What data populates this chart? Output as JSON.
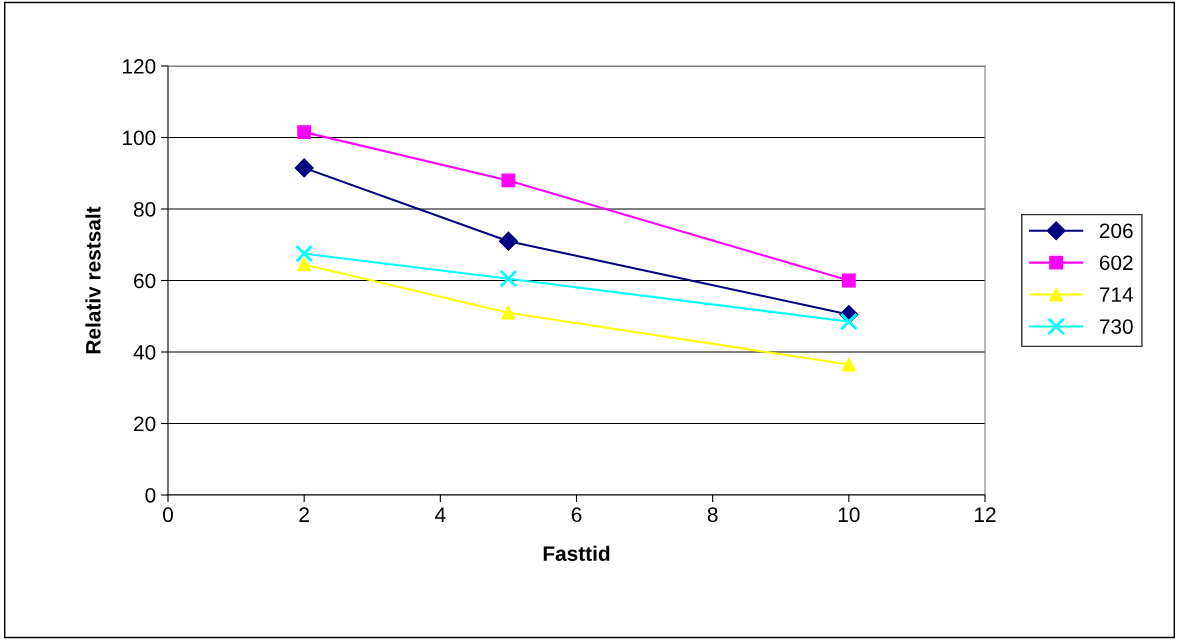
{
  "chart_data": {
    "type": "line",
    "xlabel": "Fasttid",
    "ylabel": "Relativ restsalt",
    "x": [
      2,
      5,
      10
    ],
    "series": [
      {
        "name": "206",
        "color": "#000080",
        "values": [
          91.5,
          71,
          50.5
        ],
        "marker": "diamond"
      },
      {
        "name": "602",
        "color": "#ff00ff",
        "values": [
          101.5,
          88,
          60
        ],
        "marker": "square"
      },
      {
        "name": "714",
        "color": "#ffff00",
        "values": [
          64.5,
          51,
          36.5
        ],
        "marker": "triangle"
      },
      {
        "name": "730",
        "color": "#00ffff",
        "values": [
          67.5,
          60.5,
          48.5
        ],
        "marker": "cross"
      }
    ],
    "xlim": [
      0,
      12
    ],
    "xticks": [
      0,
      2,
      4,
      6,
      8,
      10,
      12
    ],
    "ylim": [
      0,
      120
    ],
    "yticks": [
      0,
      20,
      40,
      60,
      80,
      100,
      120
    ],
    "grid": "y",
    "legend": "right",
    "line_style": "solid"
  }
}
